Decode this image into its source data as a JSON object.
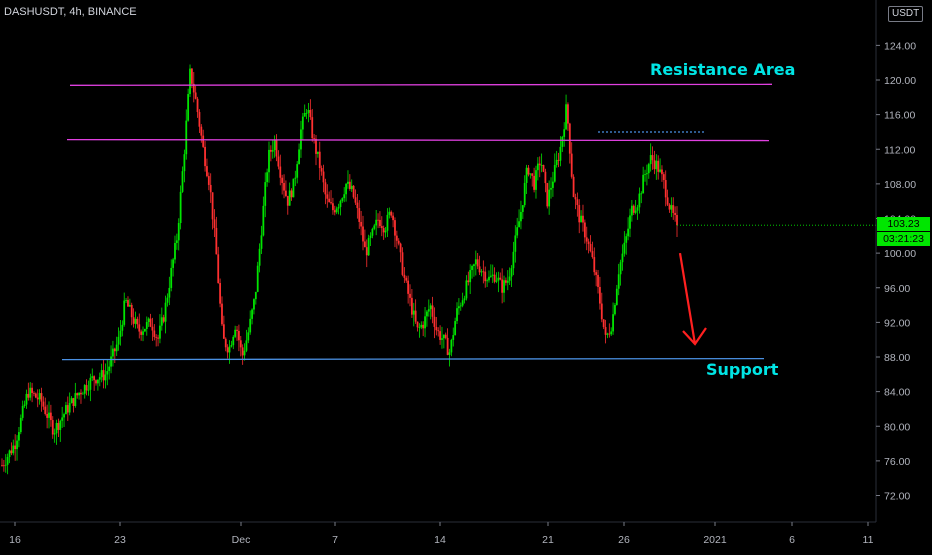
{
  "header": {
    "symbol": "DASHUSDT, 4h, BINANCE",
    "currency": "USDT"
  },
  "price_axis": {
    "ticks": [
      "124.00",
      "120.00",
      "116.00",
      "112.00",
      "108.00",
      "104.00",
      "100.00",
      "96.00",
      "92.00",
      "88.00",
      "84.00",
      "80.00",
      "76.00",
      "72.00"
    ],
    "last_price": "103.23",
    "countdown": "03:21:23"
  },
  "time_axis": {
    "ticks": [
      "16",
      "23",
      "Dec",
      "7",
      "14",
      "21",
      "26",
      "2021",
      "6",
      "11"
    ]
  },
  "annotations": {
    "resistance_label": "Resistance Area",
    "support_label": "Support"
  },
  "colors": {
    "background": "#000000",
    "up_candle": "#00e600",
    "down_candle": "#ff3030",
    "resistance_line": "#e040e0",
    "support_line": "#4a90e2",
    "annotation_text": "#00e5e5",
    "arrow": "#ff2020"
  },
  "chart_data": {
    "type": "candlestick",
    "symbol": "DASHUSDT",
    "interval": "4h",
    "exchange": "BINANCE",
    "ylim": [
      70,
      128
    ],
    "levels": {
      "resistance_upper": 119.5,
      "resistance_lower": 113.0,
      "support": 87.7
    },
    "trend_points": [
      [
        0,
        75.5
      ],
      [
        2,
        78
      ],
      [
        4,
        84
      ],
      [
        6,
        83
      ],
      [
        8,
        79.5
      ],
      [
        10,
        82
      ],
      [
        12,
        84
      ],
      [
        14,
        85.5
      ],
      [
        16,
        86
      ],
      [
        18,
        90
      ],
      [
        19,
        94.5
      ],
      [
        21,
        91
      ],
      [
        23,
        92
      ],
      [
        24,
        90
      ],
      [
        25,
        93
      ],
      [
        27,
        102
      ],
      [
        28,
        111
      ],
      [
        29,
        121
      ],
      [
        30,
        117
      ],
      [
        31,
        112
      ],
      [
        32,
        108
      ],
      [
        33,
        100
      ],
      [
        34,
        90
      ],
      [
        35,
        89
      ],
      [
        36,
        92
      ],
      [
        37,
        88
      ],
      [
        38,
        91
      ],
      [
        39,
        95
      ],
      [
        40,
        103
      ],
      [
        41,
        111
      ],
      [
        42,
        113
      ],
      [
        43,
        109
      ],
      [
        44,
        106
      ],
      [
        45,
        108
      ],
      [
        46,
        114
      ],
      [
        47,
        117
      ],
      [
        48,
        113
      ],
      [
        49,
        110
      ],
      [
        50,
        106
      ],
      [
        51,
        105
      ],
      [
        52,
        106
      ],
      [
        53,
        108
      ],
      [
        54,
        107
      ],
      [
        55,
        104
      ],
      [
        56,
        100
      ],
      [
        57,
        102
      ],
      [
        58,
        104
      ],
      [
        59,
        103
      ],
      [
        60,
        105
      ],
      [
        61,
        101
      ],
      [
        62,
        97
      ],
      [
        63,
        94
      ],
      [
        64,
        91
      ],
      [
        65,
        92
      ],
      [
        66,
        94
      ],
      [
        67,
        91
      ],
      [
        68,
        90
      ],
      [
        69,
        88.5
      ],
      [
        70,
        93
      ],
      [
        71,
        95
      ],
      [
        72,
        97
      ],
      [
        73,
        99
      ],
      [
        74,
        98
      ],
      [
        75,
        97
      ],
      [
        76,
        97.5
      ],
      [
        77,
        96
      ],
      [
        78,
        97
      ],
      [
        79,
        101
      ],
      [
        80,
        105
      ],
      [
        81,
        110
      ],
      [
        82,
        108
      ],
      [
        83,
        111
      ],
      [
        84,
        106
      ],
      [
        85,
        109
      ],
      [
        86,
        112
      ],
      [
        87,
        117
      ],
      [
        88,
        107
      ],
      [
        89,
        104
      ],
      [
        90,
        102
      ],
      [
        91,
        99
      ],
      [
        92,
        95
      ],
      [
        93,
        90
      ],
      [
        94,
        92
      ],
      [
        95,
        98
      ],
      [
        96,
        101
      ],
      [
        97,
        105
      ],
      [
        98,
        106
      ],
      [
        99,
        109
      ],
      [
        100,
        111
      ],
      [
        101,
        110
      ],
      [
        102,
        108
      ],
      [
        103,
        105
      ],
      [
        104,
        103.2
      ]
    ],
    "candle_count": 360,
    "last_close": 103.23,
    "projection": {
      "from": 100,
      "to": 89.5
    }
  }
}
